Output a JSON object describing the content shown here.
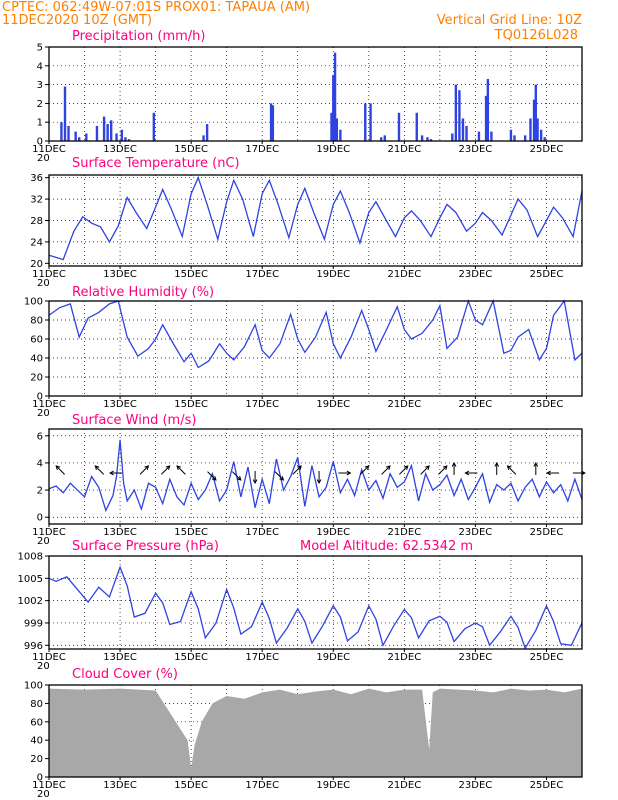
{
  "header": {
    "left_line1": "CPTEC:   062:49W-07:01S   PROX01: TAPAUA (AM)",
    "left_line2": "11DEC2020 10Z (GMT)",
    "right_line1": "Vertical Grid Line: 10Z",
    "right_line2": "TQ0126L028"
  },
  "colors": {
    "header": "#ff7f00",
    "title": "#ff0080",
    "line": "#2f43e0",
    "cloud": "#a8a8a8"
  },
  "x_axis": {
    "start": "11DEC",
    "days": 15,
    "labels": [
      "11DEC",
      "13DEC",
      "15DEC",
      "17DEC",
      "19DEC",
      "21DEC",
      "23DEC",
      "25DEC"
    ],
    "label_day_offsets": [
      0,
      2,
      4,
      6,
      8,
      10,
      12,
      14
    ],
    "truncated_label": "20"
  },
  "chart_data": [
    {
      "id": "precip",
      "type": "bar",
      "title": "Precipitation (mm/h)",
      "ylim": [
        0,
        5
      ],
      "yticks": [
        "0",
        "1",
        "2",
        "3",
        "4",
        "5"
      ],
      "grid": true,
      "x": [
        0.35,
        0.45,
        0.55,
        0.75,
        0.85,
        1.05,
        1.35,
        1.55,
        1.65,
        1.75,
        1.9,
        2.05,
        2.15,
        2.25,
        2.95,
        4.35,
        4.45,
        6.25,
        6.3,
        7.95,
        8.0,
        8.05,
        8.1,
        8.2,
        8.9,
        9.05,
        9.35,
        9.45,
        9.85,
        10.35,
        10.5,
        10.65,
        10.75,
        11.35,
        11.45,
        11.55,
        11.65,
        11.75,
        12.1,
        12.3,
        12.35,
        12.45,
        13.0,
        13.1,
        13.4,
        13.55,
        13.65,
        13.7,
        13.75,
        13.85,
        13.95
      ],
      "values": [
        1.0,
        2.9,
        0.8,
        0.5,
        0.2,
        0.4,
        0.8,
        1.3,
        0.9,
        1.1,
        0.4,
        0.6,
        0.2,
        0.1,
        1.5,
        0.3,
        0.9,
        2.0,
        1.9,
        1.5,
        3.5,
        4.7,
        1.2,
        0.6,
        2.0,
        2.0,
        0.2,
        0.3,
        1.5,
        1.5,
        0.3,
        0.2,
        0.1,
        0.4,
        3.0,
        2.7,
        1.2,
        0.8,
        0.5,
        2.4,
        3.3,
        0.5,
        0.6,
        0.3,
        0.3,
        1.2,
        2.2,
        3.0,
        1.2,
        0.6,
        0.2
      ]
    },
    {
      "id": "temp",
      "type": "line",
      "title": "Surface Temperature (nC)",
      "ylim": [
        19.5,
        36.5
      ],
      "yticks": [
        "20",
        "24",
        "28",
        "32",
        "36"
      ],
      "grid": true,
      "x": [
        0,
        0.4,
        0.7,
        0.95,
        1.2,
        1.45,
        1.7,
        1.95,
        2.2,
        2.45,
        2.75,
        3.0,
        3.2,
        3.45,
        3.75,
        4.0,
        4.2,
        4.45,
        4.75,
        5.0,
        5.2,
        5.45,
        5.75,
        6.0,
        6.2,
        6.45,
        6.75,
        7.0,
        7.2,
        7.45,
        7.75,
        8.0,
        8.2,
        8.45,
        8.75,
        9.0,
        9.2,
        9.45,
        9.75,
        10.0,
        10.2,
        10.45,
        10.75,
        11.0,
        11.2,
        11.45,
        11.75,
        12.0,
        12.2,
        12.45,
        12.75,
        13.0,
        13.2,
        13.45,
        13.75,
        14.0,
        14.2,
        14.45,
        14.75,
        15.0
      ],
      "values": [
        21.5,
        20.7,
        26.0,
        28.7,
        27.5,
        26.8,
        24.0,
        27.0,
        32.3,
        29.5,
        26.5,
        30.5,
        33.8,
        30.0,
        25.0,
        33.0,
        36.0,
        31.0,
        24.5,
        31.5,
        35.5,
        32.0,
        25.0,
        33.0,
        35.5,
        31.0,
        24.8,
        31.0,
        34.0,
        29.5,
        24.5,
        31.0,
        33.5,
        29.5,
        23.8,
        29.5,
        31.5,
        28.5,
        25.0,
        28.5,
        29.8,
        28.0,
        25.0,
        28.5,
        31.0,
        29.5,
        26.0,
        27.5,
        29.5,
        28.0,
        25.3,
        29.0,
        32.0,
        30.0,
        25.0,
        28.0,
        30.5,
        28.5,
        25.0,
        33.5
      ]
    },
    {
      "id": "rh",
      "type": "line",
      "title": "Relative Humidity (%)",
      "ylim": [
        0,
        100
      ],
      "yticks": [
        "0",
        "20",
        "40",
        "60",
        "80",
        "100"
      ],
      "grid": true,
      "x": [
        0,
        0.3,
        0.6,
        0.85,
        1.1,
        1.4,
        1.7,
        1.95,
        2.2,
        2.5,
        2.8,
        3.0,
        3.2,
        3.5,
        3.8,
        4.0,
        4.2,
        4.5,
        4.8,
        5.0,
        5.2,
        5.5,
        5.8,
        6.0,
        6.2,
        6.5,
        6.8,
        7.0,
        7.2,
        7.5,
        7.8,
        8.0,
        8.2,
        8.5,
        8.8,
        9.0,
        9.2,
        9.5,
        9.8,
        10.0,
        10.2,
        10.5,
        10.8,
        11.0,
        11.2,
        11.5,
        11.8,
        12.0,
        12.2,
        12.5,
        12.8,
        13.0,
        13.2,
        13.5,
        13.8,
        14.0,
        14.2,
        14.5,
        14.8,
        15.0
      ],
      "values": [
        85,
        93,
        97,
        62,
        82,
        88,
        97,
        100,
        62,
        42,
        50,
        60,
        75,
        55,
        36,
        45,
        30,
        37,
        55,
        45,
        38,
        52,
        75,
        48,
        40,
        55,
        86,
        60,
        46,
        62,
        88,
        55,
        40,
        62,
        90,
        70,
        47,
        70,
        94,
        70,
        60,
        66,
        80,
        95,
        50,
        62,
        100,
        80,
        75,
        100,
        45,
        48,
        62,
        70,
        38,
        50,
        85,
        100,
        38,
        45
      ]
    },
    {
      "id": "wind",
      "type": "line",
      "title": "Surface Wind (m/s)",
      "ylim": [
        -0.5,
        6.5
      ],
      "yticks": [
        "0",
        "2",
        "4",
        "6"
      ],
      "grid": true,
      "x": [
        0,
        0.2,
        0.4,
        0.6,
        0.8,
        1.0,
        1.2,
        1.4,
        1.6,
        1.8,
        1.9,
        2.0,
        2.1,
        2.2,
        2.4,
        2.6,
        2.8,
        3.0,
        3.2,
        3.4,
        3.6,
        3.8,
        4.0,
        4.2,
        4.4,
        4.6,
        4.8,
        5.0,
        5.2,
        5.4,
        5.6,
        5.8,
        6.0,
        6.2,
        6.4,
        6.6,
        6.8,
        7.0,
        7.2,
        7.4,
        7.6,
        7.8,
        8.0,
        8.2,
        8.4,
        8.6,
        8.8,
        9.0,
        9.2,
        9.4,
        9.6,
        9.8,
        10.0,
        10.2,
        10.4,
        10.6,
        10.8,
        11.0,
        11.2,
        11.4,
        11.6,
        11.8,
        12.0,
        12.2,
        12.4,
        12.6,
        12.8,
        13.0,
        13.2,
        13.4,
        13.6,
        13.8,
        14.0,
        14.2,
        14.4,
        14.6,
        14.8,
        15.0
      ],
      "values": [
        2.1,
        2.3,
        1.8,
        2.5,
        2.0,
        1.5,
        3.0,
        2.2,
        0.5,
        1.6,
        3.0,
        5.7,
        2.5,
        1.2,
        2.0,
        0.6,
        2.5,
        2.2,
        1.0,
        2.8,
        1.5,
        0.9,
        2.5,
        1.3,
        2.0,
        3.2,
        1.2,
        2.0,
        4.1,
        1.5,
        3.7,
        0.7,
        2.8,
        1.0,
        4.3,
        2.0,
        3.0,
        4.4,
        0.8,
        3.8,
        1.5,
        2.2,
        4.1,
        1.8,
        2.8,
        1.6,
        3.5,
        2.0,
        2.7,
        1.4,
        3.2,
        2.2,
        2.6,
        3.8,
        1.2,
        3.2,
        2.0,
        2.4,
        3.1,
        1.6,
        2.8,
        1.3,
        2.2,
        3.2,
        1.1,
        2.4,
        2.0,
        2.5,
        1.2,
        2.2,
        2.8,
        1.5,
        2.6,
        1.8,
        2.4,
        1.2,
        2.8,
        1.3
      ],
      "arrows": [
        {
          "x": 0.4,
          "dir": "NW"
        },
        {
          "x": 1.5,
          "dir": "NW"
        },
        {
          "x": 2.0,
          "dir": "W"
        },
        {
          "x": 2.6,
          "dir": "NE"
        },
        {
          "x": 3.2,
          "dir": "NE"
        },
        {
          "x": 3.8,
          "dir": "NW"
        },
        {
          "x": 4.5,
          "dir": "SE"
        },
        {
          "x": 5.2,
          "dir": "SE"
        },
        {
          "x": 5.8,
          "dir": "S"
        },
        {
          "x": 6.4,
          "dir": "SE"
        },
        {
          "x": 6.9,
          "dir": "NE"
        },
        {
          "x": 7.6,
          "dir": "S"
        },
        {
          "x": 8.2,
          "dir": "E"
        },
        {
          "x": 8.8,
          "dir": "NE"
        },
        {
          "x": 9.4,
          "dir": "NE"
        },
        {
          "x": 9.9,
          "dir": "NE"
        },
        {
          "x": 10.5,
          "dir": "NE"
        },
        {
          "x": 11.0,
          "dir": "NE"
        },
        {
          "x": 11.4,
          "dir": "N"
        },
        {
          "x": 12.0,
          "dir": "W"
        },
        {
          "x": 12.6,
          "dir": "N"
        },
        {
          "x": 13.1,
          "dir": "NW"
        },
        {
          "x": 13.7,
          "dir": "N"
        },
        {
          "x": 14.3,
          "dir": "W"
        },
        {
          "x": 14.8,
          "dir": "E"
        }
      ]
    },
    {
      "id": "pressure",
      "type": "line",
      "title": "Surface Pressure (hPa)",
      "subtitle": "Model Altitude: 62.5342  m",
      "ylim": [
        995.5,
        1008
      ],
      "yticks": [
        "996",
        "999",
        "1002",
        "1005",
        "1008"
      ],
      "grid": true,
      "x": [
        0,
        0.2,
        0.5,
        0.8,
        1.1,
        1.4,
        1.7,
        2.0,
        2.2,
        2.4,
        2.7,
        3.0,
        3.2,
        3.4,
        3.7,
        4.0,
        4.2,
        4.4,
        4.7,
        5.0,
        5.2,
        5.4,
        5.7,
        6.0,
        6.2,
        6.4,
        6.7,
        7.0,
        7.2,
        7.4,
        7.7,
        8.0,
        8.2,
        8.4,
        8.7,
        9.0,
        9.2,
        9.4,
        9.7,
        10.0,
        10.2,
        10.4,
        10.7,
        11.0,
        11.2,
        11.4,
        11.7,
        12.0,
        12.2,
        12.4,
        12.7,
        13.0,
        13.2,
        13.4,
        13.7,
        14.0,
        14.2,
        14.4,
        14.7,
        15.0
      ],
      "values": [
        1005,
        1004.6,
        1005.2,
        1003.5,
        1001.8,
        1003.8,
        1002.5,
        1006.5,
        1004.0,
        999.8,
        1000.3,
        1003.0,
        1001.7,
        998.8,
        999.2,
        1003.2,
        1000.9,
        997.0,
        999.0,
        1003.5,
        1001.0,
        997.5,
        998.5,
        1001.8,
        999.6,
        996.3,
        998.3,
        1000.9,
        999.2,
        996.3,
        998.6,
        1001.3,
        999.8,
        996.6,
        997.8,
        1001.3,
        999.5,
        996.0,
        998.6,
        1000.8,
        999.7,
        997.0,
        999.3,
        999.9,
        999.1,
        996.5,
        998.2,
        999.0,
        998.5,
        996.0,
        997.8,
        999.9,
        998.4,
        995.6,
        998.0,
        1001.3,
        999.2,
        996.2,
        996.0,
        999.0
      ]
    },
    {
      "id": "cloud",
      "type": "area",
      "title": "Cloud Cover (%)",
      "ylim": [
        0,
        100
      ],
      "yticks": [
        "0",
        "20",
        "40",
        "60",
        "80",
        "100"
      ],
      "grid": true,
      "x": [
        0,
        1,
        2,
        3,
        3.9,
        4.0,
        4.1,
        4.3,
        4.6,
        5.0,
        5.5,
        6.0,
        6.5,
        7.0,
        7.5,
        8.0,
        8.5,
        9.0,
        9.5,
        10.0,
        10.5,
        10.7,
        10.8,
        11.0,
        11.5,
        12.0,
        12.5,
        13.0,
        13.5,
        14.0,
        14.5,
        15.0
      ],
      "values": [
        96,
        95,
        96,
        94,
        40,
        10,
        35,
        60,
        80,
        88,
        85,
        92,
        95,
        90,
        93,
        95,
        90,
        96,
        92,
        95,
        95,
        30,
        92,
        96,
        95,
        94,
        92,
        96,
        94,
        95,
        92,
        96
      ]
    }
  ]
}
